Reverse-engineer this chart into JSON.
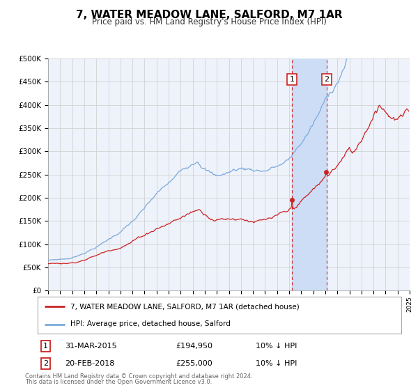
{
  "title": "7, WATER MEADOW LANE, SALFORD, M7 1AR",
  "subtitle": "Price paid vs. HM Land Registry's House Price Index (HPI)",
  "hpi_label": "HPI: Average price, detached house, Salford",
  "price_label": "7, WATER MEADOW LANE, SALFORD, M7 1AR (detached house)",
  "legend_text1": "31-MAR-2015",
  "legend_val1": "£194,950",
  "legend_note1": "10% ↓ HPI",
  "legend_text2": "20-FEB-2018",
  "legend_val2": "£255,000",
  "legend_note2": "10% ↓ HPI",
  "footnote1": "Contains HM Land Registry data © Crown copyright and database right 2024.",
  "footnote2": "This data is licensed under the Open Government Licence v3.0.",
  "vline1_year": 2015.25,
  "vline2_year": 2018.12,
  "marker1_year": 2015.25,
  "marker1_price": 194950,
  "marker2_year": 2018.12,
  "marker2_price": 255000,
  "ylim": [
    0,
    500000
  ],
  "xlim": [
    1995,
    2025
  ],
  "bg_color": "#ffffff",
  "plot_bg_color": "#eef2fa",
  "grid_color": "#cccccc",
  "hpi_color": "#7aaadd",
  "price_color": "#cc2222",
  "marker_color": "#cc2222",
  "vline_color": "#cc2222",
  "shade_color": "#ccddf5"
}
